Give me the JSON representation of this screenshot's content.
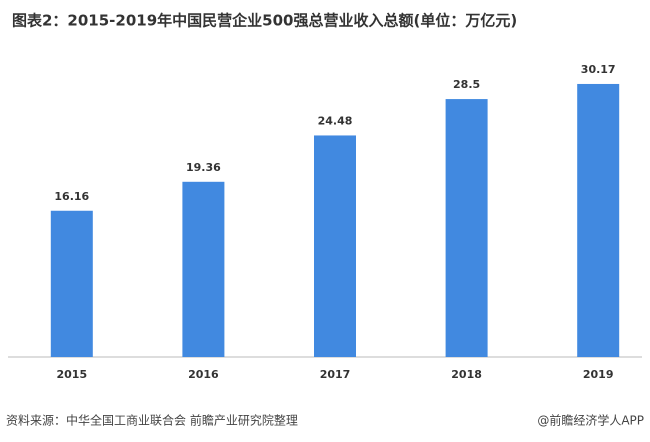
{
  "chart_data": {
    "type": "bar",
    "title": "图表2：2015-2019年中国民营企业500强总营业收入总额(单位：万亿元)",
    "categories": [
      "2015",
      "2016",
      "2017",
      "2018",
      "2019"
    ],
    "values": [
      16.16,
      19.36,
      24.48,
      28.5,
      30.17
    ],
    "color": "#4189e0",
    "source": "资料来源：中华全国工商业联合会 前瞻产业研究院整理",
    "brand": "@前瞻经济学人APP"
  }
}
